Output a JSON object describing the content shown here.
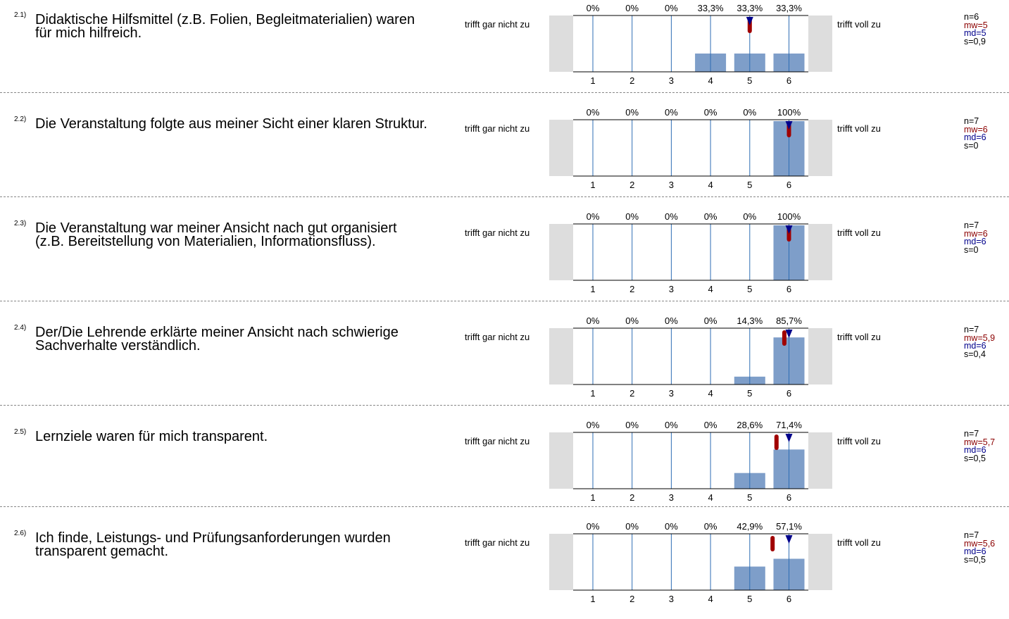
{
  "colors": {
    "bar": "#7e9ec9",
    "gridline": "#2e6db4",
    "mean": "#a00000",
    "median": "#00008b",
    "sidepanel": "#dddddd"
  },
  "scale": {
    "left_label": "trifft gar nicht zu",
    "right_label": "trifft voll zu",
    "ticks": [
      "1",
      "2",
      "3",
      "4",
      "5",
      "6"
    ]
  },
  "chart_data": [
    {
      "type": "bar",
      "number": "2.1)",
      "question": "Didaktische Hilfsmittel (z.B. Folien, Begleitmaterialien) waren für mich hilfreich.",
      "categories": [
        "1",
        "2",
        "3",
        "4",
        "5",
        "6"
      ],
      "values": [
        0,
        0,
        0,
        33.3,
        33.3,
        33.3
      ],
      "value_labels": [
        "0%",
        "0%",
        "0%",
        "33,3%",
        "33,3%",
        "33,3%"
      ],
      "ylim": [
        0,
        100
      ],
      "mean": 5,
      "median": 5,
      "stats": {
        "n": "n=6",
        "mw": "mw=5",
        "md": "md=5",
        "s": "s=0,9"
      }
    },
    {
      "type": "bar",
      "number": "2.2)",
      "question": "Die Veranstaltung folgte aus meiner Sicht einer klaren Struktur.",
      "categories": [
        "1",
        "2",
        "3",
        "4",
        "5",
        "6"
      ],
      "values": [
        0,
        0,
        0,
        0,
        0,
        100
      ],
      "value_labels": [
        "0%",
        "0%",
        "0%",
        "0%",
        "0%",
        "100%"
      ],
      "ylim": [
        0,
        100
      ],
      "mean": 6,
      "median": 6,
      "stats": {
        "n": "n=7",
        "mw": "mw=6",
        "md": "md=6",
        "s": "s=0"
      }
    },
    {
      "type": "bar",
      "number": "2.3)",
      "question": "Die Veranstaltung war meiner Ansicht nach gut organisiert (z.B. Bereitstellung von Materialien, Informationsfluss).",
      "categories": [
        "1",
        "2",
        "3",
        "4",
        "5",
        "6"
      ],
      "values": [
        0,
        0,
        0,
        0,
        0,
        100
      ],
      "value_labels": [
        "0%",
        "0%",
        "0%",
        "0%",
        "0%",
        "100%"
      ],
      "ylim": [
        0,
        100
      ],
      "mean": 6,
      "median": 6,
      "stats": {
        "n": "n=7",
        "mw": "mw=6",
        "md": "md=6",
        "s": "s=0"
      }
    },
    {
      "type": "bar",
      "number": "2.4)",
      "question": "Der/Die Lehrende erklärte meiner Ansicht nach schwierige Sachverhalte verständlich.",
      "categories": [
        "1",
        "2",
        "3",
        "4",
        "5",
        "6"
      ],
      "values": [
        0,
        0,
        0,
        0,
        14.3,
        85.7
      ],
      "value_labels": [
        "0%",
        "0%",
        "0%",
        "0%",
        "14,3%",
        "85,7%"
      ],
      "ylim": [
        0,
        100
      ],
      "mean": 5.9,
      "median": 6,
      "stats": {
        "n": "n=7",
        "mw": "mw=5,9",
        "md": "md=6",
        "s": "s=0,4"
      }
    },
    {
      "type": "bar",
      "number": "2.5)",
      "question": "Lernziele waren für mich transparent.",
      "categories": [
        "1",
        "2",
        "3",
        "4",
        "5",
        "6"
      ],
      "values": [
        0,
        0,
        0,
        0,
        28.6,
        71.4
      ],
      "value_labels": [
        "0%",
        "0%",
        "0%",
        "0%",
        "28,6%",
        "71,4%"
      ],
      "ylim": [
        0,
        100
      ],
      "mean": 5.7,
      "median": 6,
      "stats": {
        "n": "n=7",
        "mw": "mw=5,7",
        "md": "md=6",
        "s": "s=0,5"
      }
    },
    {
      "type": "bar",
      "number": "2.6)",
      "question": "Ich finde, Leistungs- und Prüfungsanforderungen wurden transparent gemacht.",
      "categories": [
        "1",
        "2",
        "3",
        "4",
        "5",
        "6"
      ],
      "values": [
        0,
        0,
        0,
        0,
        42.9,
        57.1
      ],
      "value_labels": [
        "0%",
        "0%",
        "0%",
        "0%",
        "42,9%",
        "57,1%"
      ],
      "ylim": [
        0,
        100
      ],
      "mean": 5.6,
      "median": 6,
      "stats": {
        "n": "n=7",
        "mw": "mw=5,6",
        "md": "md=6",
        "s": "s=0,5"
      }
    }
  ]
}
